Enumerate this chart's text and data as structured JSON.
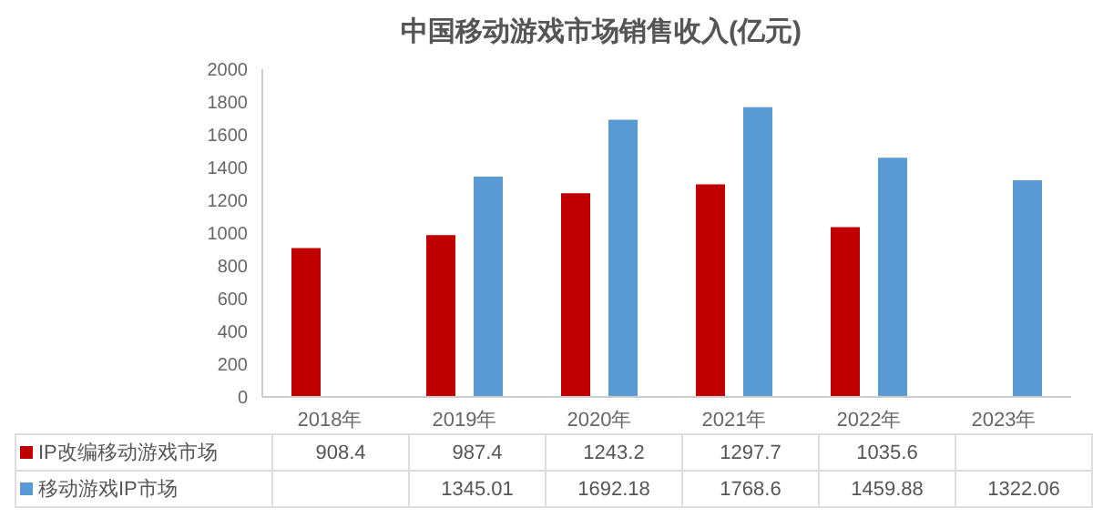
{
  "chart_data": {
    "type": "bar",
    "title": "中国移动游戏市场销售收入(亿元)",
    "categories": [
      "2018年",
      "2019年",
      "2020年",
      "2021年",
      "2022年",
      "2023年"
    ],
    "series": [
      {
        "name": "IP改编移动游戏市场",
        "color": "#c00000",
        "values": [
          908.4,
          987.4,
          1243.2,
          1297.7,
          1035.6,
          null
        ]
      },
      {
        "name": "移动游戏IP市场",
        "color": "#5b9bd5",
        "values": [
          null,
          1345.01,
          1692.18,
          1768.6,
          1459.88,
          1322.06
        ]
      }
    ],
    "ylim": [
      0,
      2000
    ],
    "yticks": [
      0,
      200,
      400,
      600,
      800,
      1000,
      1200,
      1400,
      1600,
      1800,
      2000
    ],
    "data_labels": true,
    "legend": "bottom"
  }
}
